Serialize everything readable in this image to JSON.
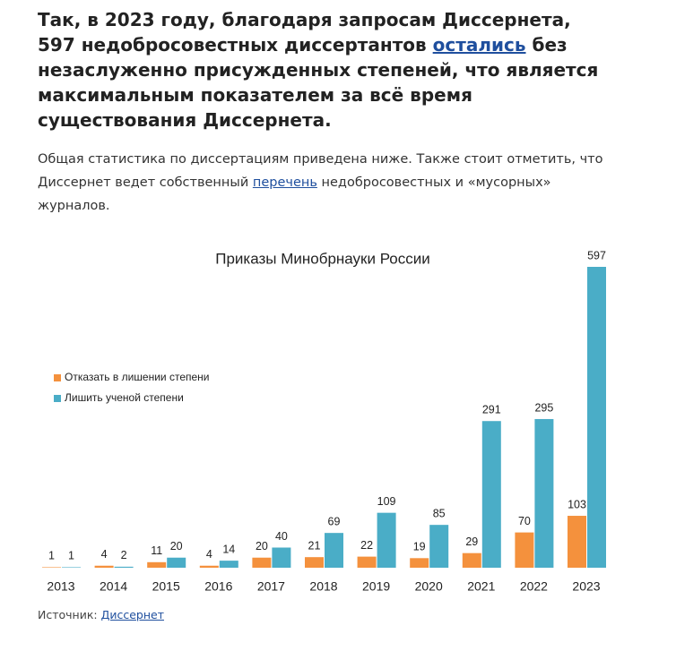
{
  "heading": {
    "before": "Так, в 2023 году, благодаря запросам Диссернета, 597 недобросовестных диссертантов ",
    "link": "остались",
    "after": " без незаслуженно присужденных степеней, что является максимальным показателем за всё время существования Диссернета."
  },
  "paragraph": {
    "before": "Общая статистика по диссертациям приведена ниже. Также стоит отметить, что Диссернет ведет собственный ",
    "link": "перечень",
    "after": " недобросовестных и «мусорных» журналов."
  },
  "chart_data": {
    "type": "bar",
    "title": "Приказы Минобрнауки России",
    "categories": [
      "2013",
      "2014",
      "2015",
      "2016",
      "2017",
      "2018",
      "2019",
      "2020",
      "2021",
      "2022",
      "2023"
    ],
    "series": [
      {
        "name": "Отказать в лишении степени",
        "color": "#f4913d",
        "values": [
          1,
          4,
          11,
          4,
          20,
          21,
          22,
          19,
          29,
          70,
          103
        ]
      },
      {
        "name": "Лишить ученой степени",
        "color": "#4aadc7",
        "values": [
          1,
          2,
          20,
          14,
          40,
          69,
          109,
          85,
          291,
          295,
          597
        ]
      }
    ]
  },
  "source": {
    "label": "Источник:",
    "link": "Диссернет"
  }
}
